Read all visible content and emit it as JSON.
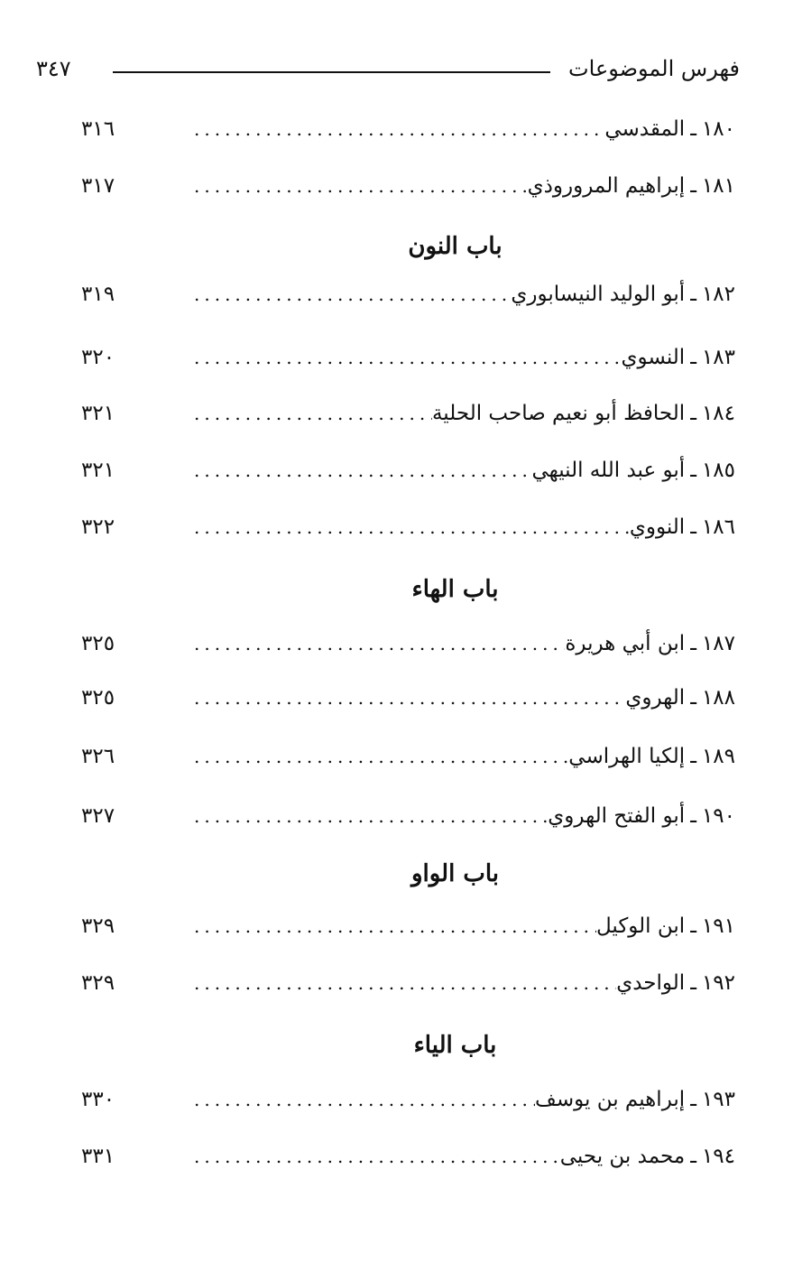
{
  "header": {
    "title": "فهرس الموضوعات",
    "page_number": "٣٤٧"
  },
  "items": [
    {
      "type": "entry",
      "number": "١٨٠",
      "title": "المقدسي",
      "page": "٣١٦"
    },
    {
      "type": "entry",
      "number": "١٨١",
      "title": "إبراهيم المروروذي",
      "page": "٣١٧"
    },
    {
      "type": "section",
      "title": "باب النون"
    },
    {
      "type": "entry",
      "number": "١٨٢",
      "title": "أبو الوليد النيسابوري",
      "page": "٣١٩"
    },
    {
      "type": "entry",
      "number": "١٨٣",
      "title": "النسوي",
      "page": "٣٢٠"
    },
    {
      "type": "entry",
      "number": "١٨٤",
      "title": "الحافظ أبو نعيم صاحب الحلية",
      "page": "٣٢١"
    },
    {
      "type": "entry",
      "number": "١٨٥",
      "title": "أبو عبد الله النيهي",
      "page": "٣٢١"
    },
    {
      "type": "entry",
      "number": "١٨٦",
      "title": "النووي",
      "page": "٣٢٢"
    },
    {
      "type": "section",
      "title": "باب الهاء"
    },
    {
      "type": "entry",
      "number": "١٨٧",
      "title": "ابن أبي هريرة",
      "page": "٣٢٥"
    },
    {
      "type": "entry",
      "number": "١٨٨",
      "title": "الهروي",
      "page": "٣٢٥"
    },
    {
      "type": "entry",
      "number": "١٨٩",
      "title": "إلكيا الهراسي",
      "page": "٣٢٦"
    },
    {
      "type": "entry",
      "number": "١٩٠",
      "title": "أبو الفتح الهروي",
      "page": "٣٢٧"
    },
    {
      "type": "section",
      "title": "باب الواو"
    },
    {
      "type": "entry",
      "number": "١٩١",
      "title": "ابن الوكيل",
      "page": "٣٢٩"
    },
    {
      "type": "entry",
      "number": "١٩٢",
      "title": "الواحدي",
      "page": "٣٢٩"
    },
    {
      "type": "section",
      "title": "باب الياء"
    },
    {
      "type": "entry",
      "number": "١٩٣",
      "title": "إبراهيم بن يوسف",
      "page": "٣٣٠"
    },
    {
      "type": "entry",
      "number": "١٩٤",
      "title": "محمد بن يحيى",
      "page": "٣٣١"
    }
  ]
}
